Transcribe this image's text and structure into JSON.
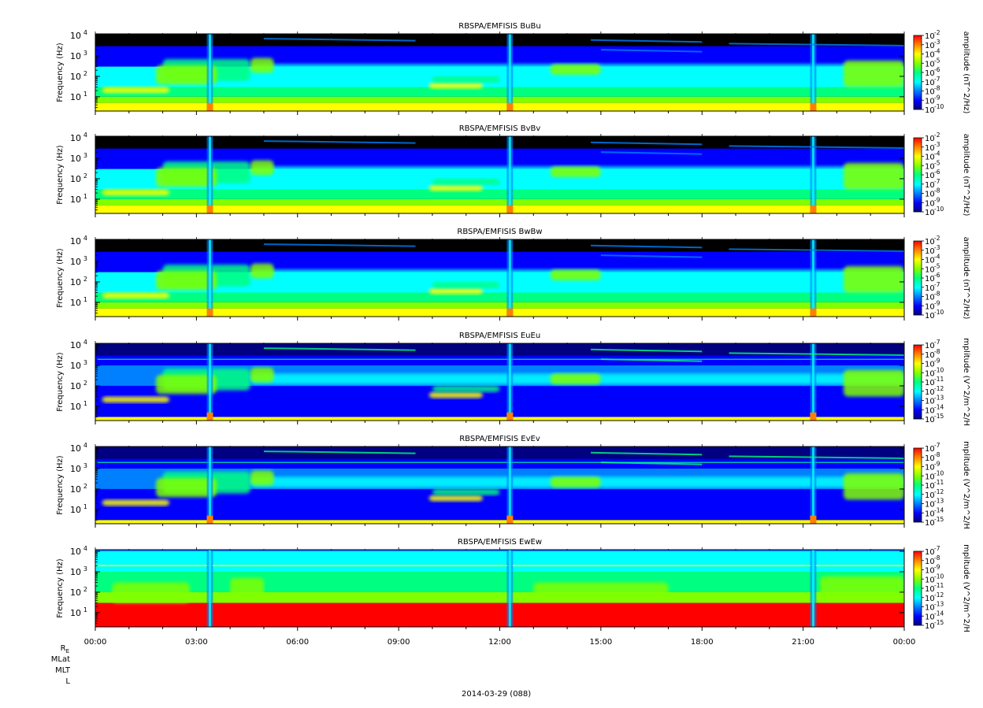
{
  "chart_data": {
    "type": "heatmap",
    "date_label": "2014-03-29 (088)",
    "x_ticks": [
      "00:00",
      "03:00",
      "06:00",
      "09:00",
      "12:00",
      "15:00",
      "18:00",
      "21:00",
      "00:00"
    ],
    "ephemeris_labels": [
      "R_E",
      "MLat",
      "MLT",
      "L"
    ],
    "ephemeris_re": {
      "main": "R",
      "sub": "E"
    },
    "y_axis_label": "Frequency (Hz)",
    "y_range_hz": [
      2,
      12000
    ],
    "y_scale": "log",
    "y_ticks": [
      {
        "base": "10",
        "exp": "1"
      },
      {
        "base": "10",
        "exp": "2"
      },
      {
        "base": "10",
        "exp": "3"
      },
      {
        "base": "10",
        "exp": "4"
      }
    ],
    "colormap": [
      "#000080",
      "#0000ff",
      "#0080ff",
      "#00ffff",
      "#00ff80",
      "#80ff00",
      "#ffff00",
      "#ff8000",
      "#ff0000"
    ],
    "panels": [
      {
        "title": "RBSPA/EMFISIS  BuBu",
        "kind": "B",
        "cbar_label": "amplitude (nT^2/Hz)",
        "cbar_ticks": [
          "-2",
          "-3",
          "-4",
          "-5",
          "-6",
          "-7",
          "-8",
          "-9",
          "-10"
        ],
        "cbar_range": [
          -10,
          -2
        ]
      },
      {
        "title": "RBSPA/EMFISIS  BvBv",
        "kind": "B",
        "cbar_label": "amplitude (nT^2/Hz)",
        "cbar_ticks": [
          "-2",
          "-3",
          "-4",
          "-5",
          "-6",
          "-7",
          "-8",
          "-9",
          "-10"
        ],
        "cbar_range": [
          -10,
          -2
        ]
      },
      {
        "title": "RBSPA/EMFISIS  BwBw",
        "kind": "B",
        "cbar_label": "amplitude (nT^2/Hz)",
        "cbar_ticks": [
          "-2",
          "-3",
          "-4",
          "-5",
          "-6",
          "-7",
          "-8",
          "-9",
          "-10"
        ],
        "cbar_range": [
          -10,
          -2
        ]
      },
      {
        "title": "RBSPA/EMFISIS  EuEu",
        "kind": "E",
        "cbar_label": "mplitude (V^2/m^2/H",
        "cbar_ticks": [
          "-7",
          "-8",
          "-9",
          "-10",
          "-11",
          "-12",
          "-13",
          "-14",
          "-15"
        ],
        "cbar_range": [
          -15,
          -7
        ]
      },
      {
        "title": "RBSPA/EMFISIS  EvEv",
        "kind": "E",
        "cbar_label": "mplitude (V^2/m^2/H",
        "cbar_ticks": [
          "-7",
          "-8",
          "-9",
          "-10",
          "-11",
          "-12",
          "-13",
          "-14",
          "-15"
        ],
        "cbar_range": [
          -15,
          -7
        ]
      },
      {
        "title": "RBSPA/EMFISIS  EwEw",
        "kind": "Ew",
        "cbar_label": "mplitude (V^2/m^2/H",
        "cbar_ticks": [
          "-7",
          "-8",
          "-9",
          "-10",
          "-11",
          "-12",
          "-13",
          "-14",
          "-15"
        ],
        "cbar_range": [
          -15,
          -7
        ]
      }
    ]
  }
}
